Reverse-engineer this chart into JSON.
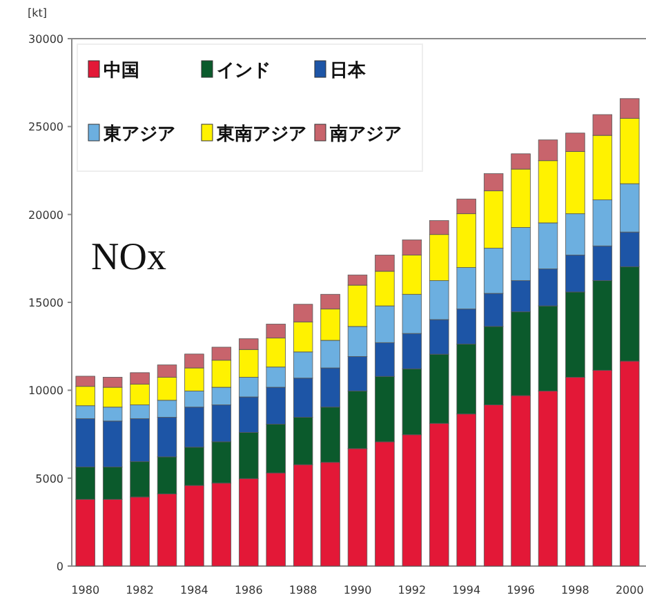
{
  "chart_data": {
    "type": "bar",
    "stacked": true,
    "title": "NOx",
    "ylabel": "[kt]",
    "legend": "top left",
    "ylim": [
      0,
      30000
    ],
    "yticks": [
      0,
      5000,
      10000,
      15000,
      20000,
      25000,
      30000
    ],
    "categories": [
      "1980",
      null,
      "1982",
      null,
      "1984",
      null,
      "1986",
      null,
      "1988",
      null,
      "1990",
      null,
      "1992",
      null,
      "1994",
      null,
      "1996",
      null,
      "1998",
      null,
      "2000"
    ],
    "series": [
      {
        "name": "中国",
        "color": "#e31837",
        "values": [
          3800,
          3800,
          3930,
          4110,
          4590,
          4720,
          4980,
          5300,
          5770,
          5900,
          6680,
          7070,
          7470,
          8120,
          8650,
          9170,
          9700,
          9960,
          10740,
          11140,
          11660
        ]
      },
      {
        "name": "インド",
        "color": "#0b5a2c",
        "values": [
          1830,
          1830,
          2010,
          2100,
          2170,
          2350,
          2620,
          2770,
          2690,
          3140,
          3280,
          3720,
          3750,
          3930,
          3980,
          4460,
          4760,
          4840,
          4850,
          5100,
          5370
        ]
      },
      {
        "name": "日本",
        "color": "#1d55a6",
        "values": [
          2750,
          2620,
          2440,
          2250,
          2280,
          2100,
          2020,
          2100,
          2230,
          2230,
          1960,
          1920,
          2010,
          1970,
          1990,
          1880,
          1780,
          2100,
          2100,
          1970,
          1970
        ]
      },
      {
        "name": "東アジア",
        "color": "#6cafe0",
        "values": [
          740,
          790,
          790,
          970,
          920,
          1000,
          1120,
          1150,
          1490,
          1570,
          1710,
          2090,
          2230,
          2220,
          2360,
          2570,
          3020,
          2620,
          2350,
          2620,
          2750
        ]
      },
      {
        "name": "東南アジア",
        "color": "#fff200",
        "values": [
          1100,
          1130,
          1180,
          1310,
          1310,
          1540,
          1580,
          1650,
          1710,
          1780,
          2350,
          1970,
          2230,
          2620,
          3060,
          3270,
          3320,
          3540,
          3540,
          3670,
          3720
        ]
      },
      {
        "name": "南アジア",
        "color": "#c8646c",
        "values": [
          580,
          570,
          650,
          700,
          790,
          740,
          610,
          790,
          1000,
          840,
          580,
          920,
          860,
          790,
          840,
          970,
          870,
          1180,
          1050,
          1180,
          1120
        ]
      }
    ]
  }
}
